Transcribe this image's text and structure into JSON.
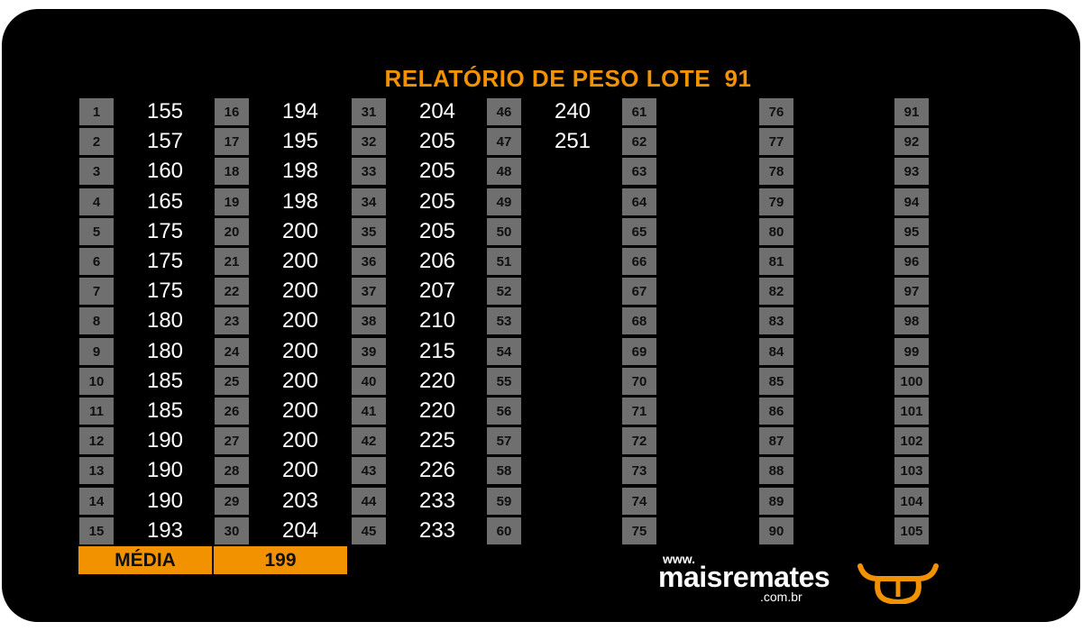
{
  "title": "RELATÓRIO DE PESO LOTE  91",
  "columns": [
    {
      "indices": [
        "1",
        "2",
        "3",
        "4",
        "5",
        "6",
        "7",
        "8",
        "9",
        "10",
        "11",
        "12",
        "13",
        "14",
        "15"
      ],
      "values": [
        "155",
        "157",
        "160",
        "165",
        "175",
        "175",
        "175",
        "180",
        "180",
        "185",
        "185",
        "190",
        "190",
        "190",
        "193"
      ]
    },
    {
      "indices": [
        "16",
        "17",
        "18",
        "19",
        "20",
        "21",
        "22",
        "23",
        "24",
        "25",
        "26",
        "27",
        "28",
        "29",
        "30"
      ],
      "values": [
        "194",
        "195",
        "198",
        "198",
        "200",
        "200",
        "200",
        "200",
        "200",
        "200",
        "200",
        "200",
        "200",
        "203",
        "204"
      ]
    },
    {
      "indices": [
        "31",
        "32",
        "33",
        "34",
        "35",
        "36",
        "37",
        "38",
        "39",
        "40",
        "41",
        "42",
        "43",
        "44",
        "45"
      ],
      "values": [
        "204",
        "205",
        "205",
        "205",
        "205",
        "206",
        "207",
        "210",
        "215",
        "220",
        "220",
        "225",
        "226",
        "233",
        "233"
      ]
    },
    {
      "indices": [
        "46",
        "47",
        "48",
        "49",
        "50",
        "51",
        "52",
        "53",
        "54",
        "55",
        "56",
        "57",
        "58",
        "59",
        "60"
      ],
      "values": [
        "240",
        "251",
        "",
        "",
        "",
        "",
        "",
        "",
        "",
        "",
        "",
        "",
        "",
        "",
        ""
      ]
    },
    {
      "indices": [
        "61",
        "62",
        "63",
        "64",
        "65",
        "66",
        "67",
        "68",
        "69",
        "70",
        "71",
        "72",
        "73",
        "74",
        "75"
      ],
      "values": [
        "",
        "",
        "",
        "",
        "",
        "",
        "",
        "",
        "",
        "",
        "",
        "",
        "",
        "",
        ""
      ]
    },
    {
      "indices": [
        "76",
        "77",
        "78",
        "79",
        "80",
        "81",
        "82",
        "83",
        "84",
        "85",
        "86",
        "87",
        "88",
        "89",
        "90"
      ],
      "values": [
        "",
        "",
        "",
        "",
        "",
        "",
        "",
        "",
        "",
        "",
        "",
        "",
        "",
        "",
        ""
      ]
    },
    {
      "indices": [
        "91",
        "92",
        "93",
        "94",
        "95",
        "96",
        "97",
        "98",
        "99",
        "100",
        "101",
        "102",
        "103",
        "104",
        "105"
      ],
      "values": [
        "",
        "",
        "",
        "",
        "",
        "",
        "",
        "",
        "",
        "",
        "",
        "",
        "",
        "",
        ""
      ]
    }
  ],
  "summary": {
    "label": "MÉDIA",
    "value": "199"
  },
  "logo": {
    "www": "www.",
    "name": "maisremates",
    "domain": ".com.br"
  },
  "colors": {
    "accent": "#f39200",
    "cell": "#6f6f6f",
    "background": "#000000"
  }
}
